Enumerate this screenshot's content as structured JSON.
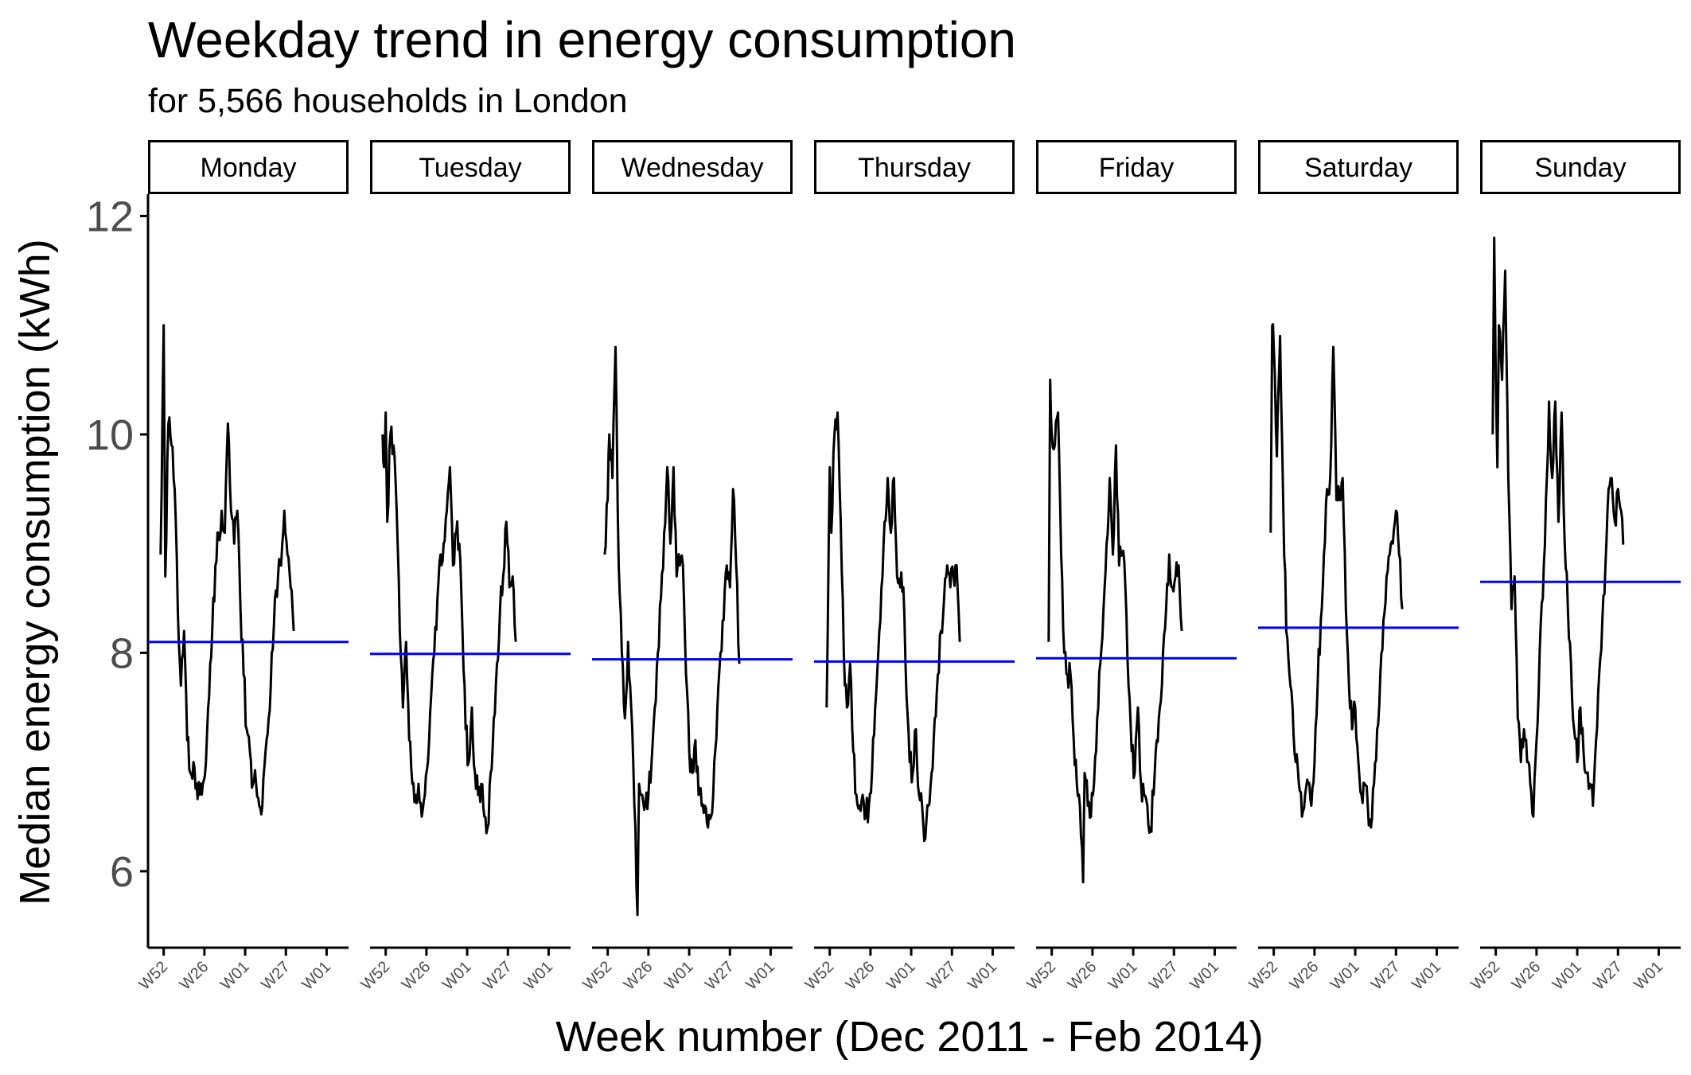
{
  "chart_data": {
    "type": "line",
    "title": "Weekday trend in energy consumption",
    "subtitle": "for 5,566 households in London",
    "xlabel": "Week number (Dec 2011 - Feb 2014)",
    "ylabel": "Median energy consumption (kWh)",
    "ylim": [
      5.3,
      12.2
    ],
    "yticks": [
      "6",
      "8",
      "10",
      "12"
    ],
    "ytick_values": [
      6,
      8,
      10,
      12
    ],
    "xticks": [
      "W52",
      "W26",
      "W01",
      "W27",
      "W01"
    ],
    "xtick_positions": [
      2,
      28,
      54,
      80,
      106
    ],
    "xlim": [
      -8,
      120
    ],
    "grid": false,
    "colors": {
      "series": "#000000",
      "mean_line": "#0000ff",
      "axis": "#000000",
      "tick_text": "#4d4d4d"
    },
    "panels": [
      {
        "name": "Monday",
        "mean": 8.1,
        "keypoints": [
          [
            0,
            8.9
          ],
          [
            2,
            11.0
          ],
          [
            3,
            8.7
          ],
          [
            5,
            10.1
          ],
          [
            7,
            9.9
          ],
          [
            9,
            9.5
          ],
          [
            11,
            8.4
          ],
          [
            13,
            7.7
          ],
          [
            15,
            8.2
          ],
          [
            17,
            7.2
          ],
          [
            19,
            6.9
          ],
          [
            21,
            7.0
          ],
          [
            23,
            6.8
          ],
          [
            25,
            6.7
          ],
          [
            27,
            6.8
          ],
          [
            29,
            7.0
          ],
          [
            31,
            7.6
          ],
          [
            33,
            8.2
          ],
          [
            35,
            8.8
          ],
          [
            37,
            9.1
          ],
          [
            39,
            9.3
          ],
          [
            41,
            9.1
          ],
          [
            43,
            10.1
          ],
          [
            45,
            9.3
          ],
          [
            47,
            9.0
          ],
          [
            49,
            9.3
          ],
          [
            51,
            8.4
          ],
          [
            53,
            7.8
          ],
          [
            55,
            7.3
          ],
          [
            57,
            7.1
          ],
          [
            59,
            6.8
          ],
          [
            61,
            6.8
          ],
          [
            63,
            6.6
          ],
          [
            65,
            6.6
          ],
          [
            67,
            7.1
          ],
          [
            69,
            7.4
          ],
          [
            71,
            8.0
          ],
          [
            73,
            8.5
          ],
          [
            75,
            8.7
          ],
          [
            77,
            8.8
          ],
          [
            79,
            9.3
          ],
          [
            81,
            8.9
          ],
          [
            83,
            8.6
          ],
          [
            85,
            8.2
          ]
        ]
      },
      {
        "name": "Tuesday",
        "mean": 7.99,
        "keypoints": [
          [
            0,
            10.0
          ],
          [
            1,
            9.7
          ],
          [
            2,
            10.2
          ],
          [
            3,
            9.2
          ],
          [
            5,
            10.0
          ],
          [
            7,
            9.9
          ],
          [
            9,
            9.3
          ],
          [
            11,
            8.2
          ],
          [
            13,
            7.5
          ],
          [
            15,
            8.1
          ],
          [
            17,
            7.2
          ],
          [
            19,
            6.8
          ],
          [
            21,
            6.7
          ],
          [
            23,
            6.8
          ],
          [
            25,
            6.5
          ],
          [
            27,
            6.7
          ],
          [
            29,
            7.0
          ],
          [
            31,
            7.6
          ],
          [
            33,
            8.0
          ],
          [
            35,
            8.5
          ],
          [
            37,
            8.9
          ],
          [
            39,
            9.0
          ],
          [
            41,
            9.3
          ],
          [
            43,
            9.7
          ],
          [
            45,
            8.8
          ],
          [
            47,
            9.1
          ],
          [
            49,
            9.0
          ],
          [
            51,
            8.2
          ],
          [
            53,
            7.3
          ],
          [
            55,
            7.0
          ],
          [
            57,
            7.5
          ],
          [
            59,
            6.9
          ],
          [
            61,
            6.7
          ],
          [
            63,
            6.8
          ],
          [
            65,
            6.5
          ],
          [
            67,
            6.4
          ],
          [
            69,
            6.9
          ],
          [
            71,
            7.4
          ],
          [
            73,
            7.9
          ],
          [
            75,
            8.4
          ],
          [
            77,
            8.7
          ],
          [
            79,
            9.2
          ],
          [
            81,
            8.6
          ],
          [
            83,
            8.7
          ],
          [
            85,
            8.1
          ]
        ]
      },
      {
        "name": "Wednesday",
        "mean": 7.94,
        "keypoints": [
          [
            0,
            8.9
          ],
          [
            2,
            9.4
          ],
          [
            3,
            10.0
          ],
          [
            5,
            9.6
          ],
          [
            7,
            10.8
          ],
          [
            9,
            8.8
          ],
          [
            11,
            8.0
          ],
          [
            13,
            7.4
          ],
          [
            15,
            8.1
          ],
          [
            17,
            7.5
          ],
          [
            19,
            6.6
          ],
          [
            21,
            5.6
          ],
          [
            22,
            6.8
          ],
          [
            24,
            6.7
          ],
          [
            26,
            6.6
          ],
          [
            28,
            6.7
          ],
          [
            30,
            7.0
          ],
          [
            32,
            7.5
          ],
          [
            34,
            8.0
          ],
          [
            36,
            8.5
          ],
          [
            38,
            9.1
          ],
          [
            40,
            9.7
          ],
          [
            42,
            9.0
          ],
          [
            44,
            9.7
          ],
          [
            46,
            8.7
          ],
          [
            48,
            8.8
          ],
          [
            50,
            8.8
          ],
          [
            52,
            7.8
          ],
          [
            54,
            7.1
          ],
          [
            56,
            6.9
          ],
          [
            58,
            7.2
          ],
          [
            60,
            6.7
          ],
          [
            62,
            6.6
          ],
          [
            64,
            6.6
          ],
          [
            66,
            6.4
          ],
          [
            68,
            6.5
          ],
          [
            70,
            7.0
          ],
          [
            72,
            7.5
          ],
          [
            74,
            8.0
          ],
          [
            76,
            8.3
          ],
          [
            78,
            8.8
          ],
          [
            80,
            8.6
          ],
          [
            82,
            9.5
          ],
          [
            84,
            8.8
          ],
          [
            86,
            7.9
          ]
        ]
      },
      {
        "name": "Thursday",
        "mean": 7.92,
        "keypoints": [
          [
            0,
            7.5
          ],
          [
            2,
            9.7
          ],
          [
            3,
            9.1
          ],
          [
            5,
            10.0
          ],
          [
            7,
            10.2
          ],
          [
            9,
            9.2
          ],
          [
            11,
            8.0
          ],
          [
            13,
            7.5
          ],
          [
            15,
            7.9
          ],
          [
            17,
            7.1
          ],
          [
            19,
            6.7
          ],
          [
            21,
            6.6
          ],
          [
            23,
            6.7
          ],
          [
            25,
            6.5
          ],
          [
            27,
            6.6
          ],
          [
            29,
            6.9
          ],
          [
            31,
            7.5
          ],
          [
            33,
            8.0
          ],
          [
            35,
            8.6
          ],
          [
            37,
            9.2
          ],
          [
            39,
            9.6
          ],
          [
            41,
            9.1
          ],
          [
            43,
            9.6
          ],
          [
            45,
            8.7
          ],
          [
            47,
            8.6
          ],
          [
            49,
            8.6
          ],
          [
            51,
            7.6
          ],
          [
            53,
            7.0
          ],
          [
            55,
            6.9
          ],
          [
            57,
            7.3
          ],
          [
            59,
            6.7
          ],
          [
            61,
            6.6
          ],
          [
            63,
            6.3
          ],
          [
            65,
            6.6
          ],
          [
            67,
            6.9
          ],
          [
            69,
            7.4
          ],
          [
            71,
            7.8
          ],
          [
            73,
            8.2
          ],
          [
            75,
            8.5
          ],
          [
            77,
            8.8
          ],
          [
            79,
            8.6
          ],
          [
            81,
            8.7
          ],
          [
            83,
            8.8
          ],
          [
            85,
            8.1
          ]
        ]
      },
      {
        "name": "Friday",
        "mean": 7.95,
        "keypoints": [
          [
            0,
            8.1
          ],
          [
            1,
            10.5
          ],
          [
            2,
            10.0
          ],
          [
            4,
            9.9
          ],
          [
            6,
            10.2
          ],
          [
            8,
            8.9
          ],
          [
            10,
            8.0
          ],
          [
            12,
            7.8
          ],
          [
            14,
            7.8
          ],
          [
            16,
            7.2
          ],
          [
            18,
            6.8
          ],
          [
            20,
            6.6
          ],
          [
            22,
            5.9
          ],
          [
            23,
            6.9
          ],
          [
            25,
            6.6
          ],
          [
            27,
            6.5
          ],
          [
            29,
            6.8
          ],
          [
            31,
            7.4
          ],
          [
            33,
            7.9
          ],
          [
            35,
            8.4
          ],
          [
            37,
            9.0
          ],
          [
            39,
            9.6
          ],
          [
            41,
            8.9
          ],
          [
            43,
            9.9
          ],
          [
            45,
            8.8
          ],
          [
            47,
            8.9
          ],
          [
            49,
            8.6
          ],
          [
            51,
            7.7
          ],
          [
            53,
            7.1
          ],
          [
            55,
            6.9
          ],
          [
            57,
            7.5
          ],
          [
            59,
            6.8
          ],
          [
            61,
            6.7
          ],
          [
            63,
            6.6
          ],
          [
            65,
            6.4
          ],
          [
            67,
            6.7
          ],
          [
            69,
            7.2
          ],
          [
            71,
            7.5
          ],
          [
            73,
            8.0
          ],
          [
            75,
            8.4
          ],
          [
            77,
            8.9
          ],
          [
            79,
            8.6
          ],
          [
            81,
            8.7
          ],
          [
            83,
            8.8
          ],
          [
            85,
            8.2
          ]
        ]
      },
      {
        "name": "Saturday",
        "mean": 8.23,
        "keypoints": [
          [
            0,
            9.1
          ],
          [
            1,
            11.0
          ],
          [
            2,
            10.8
          ],
          [
            4,
            9.8
          ],
          [
            6,
            10.9
          ],
          [
            8,
            9.4
          ],
          [
            10,
            8.2
          ],
          [
            12,
            7.8
          ],
          [
            14,
            7.5
          ],
          [
            16,
            7.0
          ],
          [
            18,
            6.8
          ],
          [
            20,
            6.5
          ],
          [
            22,
            6.7
          ],
          [
            24,
            6.8
          ],
          [
            26,
            6.6
          ],
          [
            28,
            7.0
          ],
          [
            30,
            7.7
          ],
          [
            32,
            8.3
          ],
          [
            34,
            8.9
          ],
          [
            36,
            9.5
          ],
          [
            38,
            9.6
          ],
          [
            40,
            10.8
          ],
          [
            42,
            9.4
          ],
          [
            44,
            9.4
          ],
          [
            46,
            9.6
          ],
          [
            48,
            8.4
          ],
          [
            50,
            7.7
          ],
          [
            52,
            7.3
          ],
          [
            54,
            7.5
          ],
          [
            56,
            7.0
          ],
          [
            58,
            6.7
          ],
          [
            60,
            6.8
          ],
          [
            62,
            6.6
          ],
          [
            64,
            6.4
          ],
          [
            66,
            6.8
          ],
          [
            68,
            7.3
          ],
          [
            70,
            7.8
          ],
          [
            72,
            8.3
          ],
          [
            74,
            8.7
          ],
          [
            76,
            8.9
          ],
          [
            78,
            9.0
          ],
          [
            80,
            9.3
          ],
          [
            82,
            8.9
          ],
          [
            84,
            8.4
          ]
        ]
      },
      {
        "name": "Sunday",
        "mean": 8.65,
        "keypoints": [
          [
            0,
            10.0
          ],
          [
            1,
            11.8
          ],
          [
            2,
            10.5
          ],
          [
            3,
            9.7
          ],
          [
            4,
            11.0
          ],
          [
            6,
            10.5
          ],
          [
            8,
            11.5
          ],
          [
            10,
            9.6
          ],
          [
            12,
            8.4
          ],
          [
            14,
            8.7
          ],
          [
            16,
            7.4
          ],
          [
            18,
            7.0
          ],
          [
            20,
            7.3
          ],
          [
            22,
            7.0
          ],
          [
            24,
            6.8
          ],
          [
            26,
            6.5
          ],
          [
            28,
            7.2
          ],
          [
            30,
            8.0
          ],
          [
            32,
            8.5
          ],
          [
            34,
            9.4
          ],
          [
            36,
            10.3
          ],
          [
            38,
            9.6
          ],
          [
            40,
            10.3
          ],
          [
            42,
            9.2
          ],
          [
            44,
            10.2
          ],
          [
            46,
            9.0
          ],
          [
            48,
            8.4
          ],
          [
            50,
            7.9
          ],
          [
            52,
            7.3
          ],
          [
            54,
            7.0
          ],
          [
            56,
            7.5
          ],
          [
            58,
            7.1
          ],
          [
            60,
            6.9
          ],
          [
            62,
            6.8
          ],
          [
            64,
            6.6
          ],
          [
            66,
            7.2
          ],
          [
            68,
            7.8
          ],
          [
            70,
            8.3
          ],
          [
            72,
            8.8
          ],
          [
            74,
            9.5
          ],
          [
            76,
            9.6
          ],
          [
            78,
            9.2
          ],
          [
            80,
            9.5
          ],
          [
            82,
            9.3
          ],
          [
            84,
            9.0
          ]
        ]
      }
    ]
  }
}
